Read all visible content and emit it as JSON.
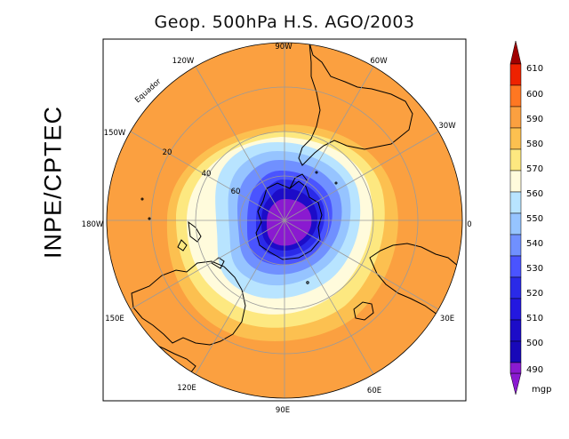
{
  "title": "Geop. 500hPa H.S. AGO/2003",
  "side_label": "INPE/CPTEC",
  "longitude_labels": [
    "90W",
    "60W",
    "30W",
    "0",
    "30E",
    "60E",
    "90E",
    "120E",
    "150E",
    "180W",
    "150W",
    "120W"
  ],
  "latitude_labels": [
    "20",
    "40",
    "60"
  ],
  "equator_label": "Equador",
  "colorbar": {
    "unit": "mgp",
    "levels": [
      "610",
      "600",
      "590",
      "580",
      "570",
      "560",
      "550",
      "540",
      "530",
      "520",
      "510",
      "500",
      "490"
    ],
    "colors": {
      "above_610": "#a00000",
      "600_610": "#ee2200",
      "590_600": "#ff7722",
      "580_590": "#fba040",
      "570_580": "#fcc050",
      "560_570": "#fde880",
      "550_560": "#fffbdc",
      "540_550": "#b8e4ff",
      "530_540": "#96c4ff",
      "520_530": "#7090ff",
      "510_520": "#4a54ff",
      "500_510": "#2a2ae8",
      "490_500": "#1c0cc8",
      "below_490": "#8a1ad0"
    }
  }
}
